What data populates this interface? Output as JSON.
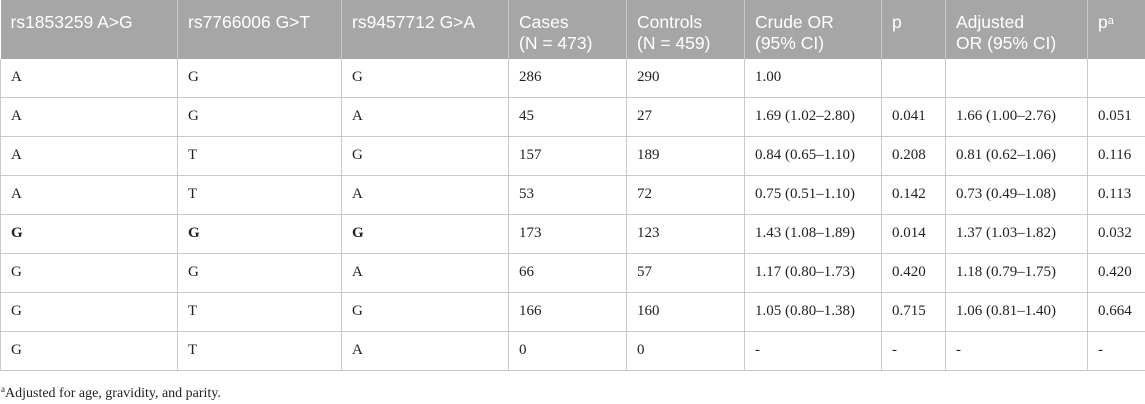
{
  "table": {
    "headers": [
      {
        "line1": "rs1853259 A>G",
        "line2": ""
      },
      {
        "line1": "rs7766006 G>T",
        "line2": ""
      },
      {
        "line1": "rs9457712 G>A",
        "line2": ""
      },
      {
        "line1": "Cases",
        "line2": "(N = 473)"
      },
      {
        "line1": "Controls",
        "line2": "(N = 459)"
      },
      {
        "line1": "Crude OR",
        "line2": "(95% CI)"
      },
      {
        "line1": "p",
        "line2": ""
      },
      {
        "line1": "Adjusted",
        "line2": "OR (95% CI)"
      },
      {
        "line1": "p",
        "line2": "",
        "sup": "a"
      }
    ],
    "rows": [
      {
        "cells": [
          "A",
          "G",
          "G",
          "286",
          "290",
          "1.00",
          "",
          "",
          ""
        ],
        "bold_first_three": false
      },
      {
        "cells": [
          "A",
          "G",
          "A",
          "45",
          "27",
          "1.69 (1.02–2.80)",
          "0.041",
          "1.66 (1.00–2.76)",
          "0.051"
        ],
        "bold_first_three": false
      },
      {
        "cells": [
          "A",
          "T",
          "G",
          "157",
          "189",
          "0.84 (0.65–1.10)",
          "0.208",
          "0.81 (0.62–1.06)",
          "0.116"
        ],
        "bold_first_three": false
      },
      {
        "cells": [
          "A",
          "T",
          "A",
          "53",
          "72",
          "0.75 (0.51–1.10)",
          "0.142",
          "0.73 (0.49–1.08)",
          "0.113"
        ],
        "bold_first_three": false
      },
      {
        "cells": [
          "G",
          "G",
          "G",
          "173",
          "123",
          "1.43 (1.08–1.89)",
          "0.014",
          "1.37 (1.03–1.82)",
          "0.032"
        ],
        "bold_first_three": true
      },
      {
        "cells": [
          "G",
          "G",
          "A",
          "66",
          "57",
          "1.17 (0.80–1.73)",
          "0.420",
          "1.18 (0.79–1.75)",
          "0.420"
        ],
        "bold_first_three": false
      },
      {
        "cells": [
          "G",
          "T",
          "G",
          "166",
          "160",
          "1.05 (0.80–1.38)",
          "0.715",
          "1.06 (0.81–1.40)",
          "0.664"
        ],
        "bold_first_three": false
      },
      {
        "cells": [
          "G",
          "T",
          "A",
          "0",
          "0",
          "-",
          "-",
          "-",
          "-"
        ],
        "bold_first_three": false
      }
    ]
  },
  "footnote": {
    "marker": "a",
    "text": "Adjusted for age, gravidity, and parity."
  },
  "colors": {
    "header_bg": "#a6a6a6",
    "header_text": "#ffffff",
    "grid": "#c9c9c9"
  }
}
